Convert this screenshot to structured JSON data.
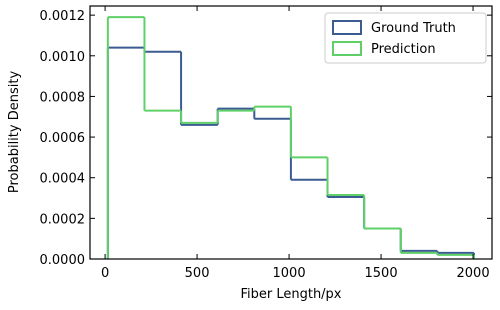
{
  "chart_data": {
    "type": "histogram",
    "xlabel": "Fiber Length/px",
    "ylabel": "Probability Density",
    "bins": [
      15,
      214,
      413,
      612,
      811,
      1010,
      1209,
      1408,
      1607,
      1806,
      2005
    ],
    "series": [
      {
        "name": "Ground Truth",
        "color": "#3b5b92",
        "values": [
          0.00104,
          0.00102,
          0.00066,
          0.00074,
          0.00069,
          0.00039,
          0.000305,
          0.00015,
          4e-05,
          3e-05
        ]
      },
      {
        "name": "Prediction",
        "color": "#5fd068",
        "values": [
          0.00119,
          0.00073,
          0.00067,
          0.00073,
          0.00075,
          0.0005,
          0.000315,
          0.00015,
          3e-05,
          2e-05
        ]
      }
    ],
    "xlim": [
      -82,
      2103
    ],
    "ylim": [
      0,
      0.001245
    ],
    "xticks": [
      0,
      500,
      1000,
      1500,
      2000
    ],
    "yticks": [
      {
        "value": 0,
        "label": "0.0000"
      },
      {
        "value": 0.0002,
        "label": "0.0002"
      },
      {
        "value": 0.0004,
        "label": "0.0004"
      },
      {
        "value": 0.0006,
        "label": "0.0006"
      },
      {
        "value": 0.0008,
        "label": "0.0008"
      },
      {
        "value": 0.001,
        "label": "0.0010"
      },
      {
        "value": 0.0012,
        "label": "0.0012"
      }
    ],
    "legend": "upper right"
  }
}
